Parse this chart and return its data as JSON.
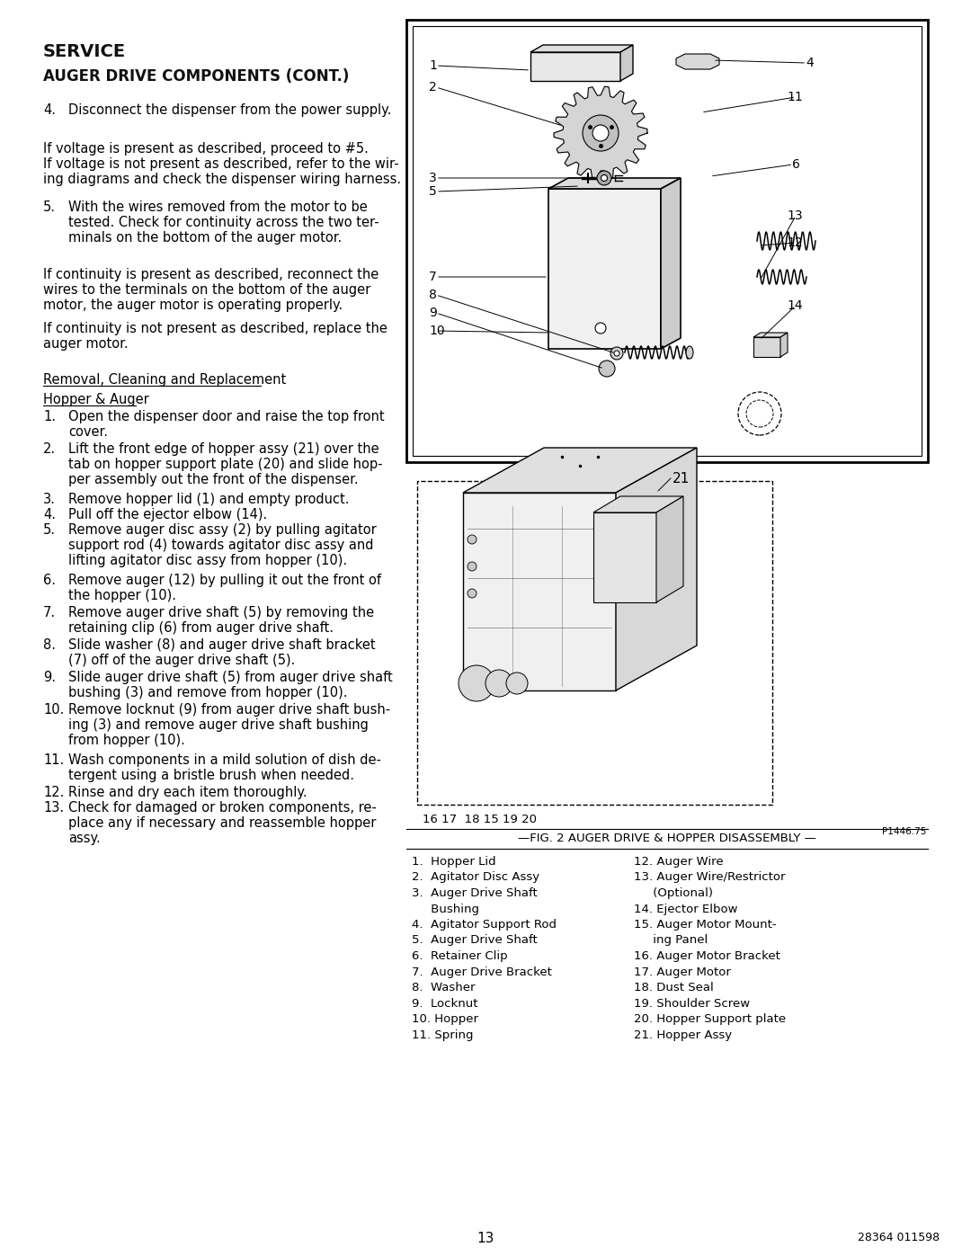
{
  "page_bg": "#ffffff",
  "title1": "SERVICE",
  "title2": "AUGER DRIVE COMPONENTS (CONT.)",
  "bottom_left": "13",
  "bottom_right": "28364 011598",
  "fig_caption": "—FIG. 2 AUGER DRIVE & HOPPER DISASSEMBLY —",
  "parts_list_col1": [
    "1.  Hopper Lid",
    "2.  Agitator Disc Assy",
    "3.  Auger Drive Shaft",
    "     Bushing",
    "4.  Agitator Support Rod",
    "5.  Auger Drive Shaft",
    "6.  Retainer Clip",
    "7.  Auger Drive Bracket",
    "8.  Washer",
    "9.  Locknut",
    "10. Hopper",
    "11. Spring"
  ],
  "parts_list_col2": [
    "12. Auger Wire",
    "13. Auger Wire/Restrictor",
    "     (Optional)",
    "14. Ejector Elbow",
    "15. Auger Motor Mount-",
    "     ing Panel",
    "16. Auger Motor Bracket",
    "17. Auger Motor",
    "18. Dust Seal",
    "19. Shoulder Screw",
    "20. Hopper Support plate",
    "21. Hopper Assy"
  ],
  "p_number": "P1446.75"
}
